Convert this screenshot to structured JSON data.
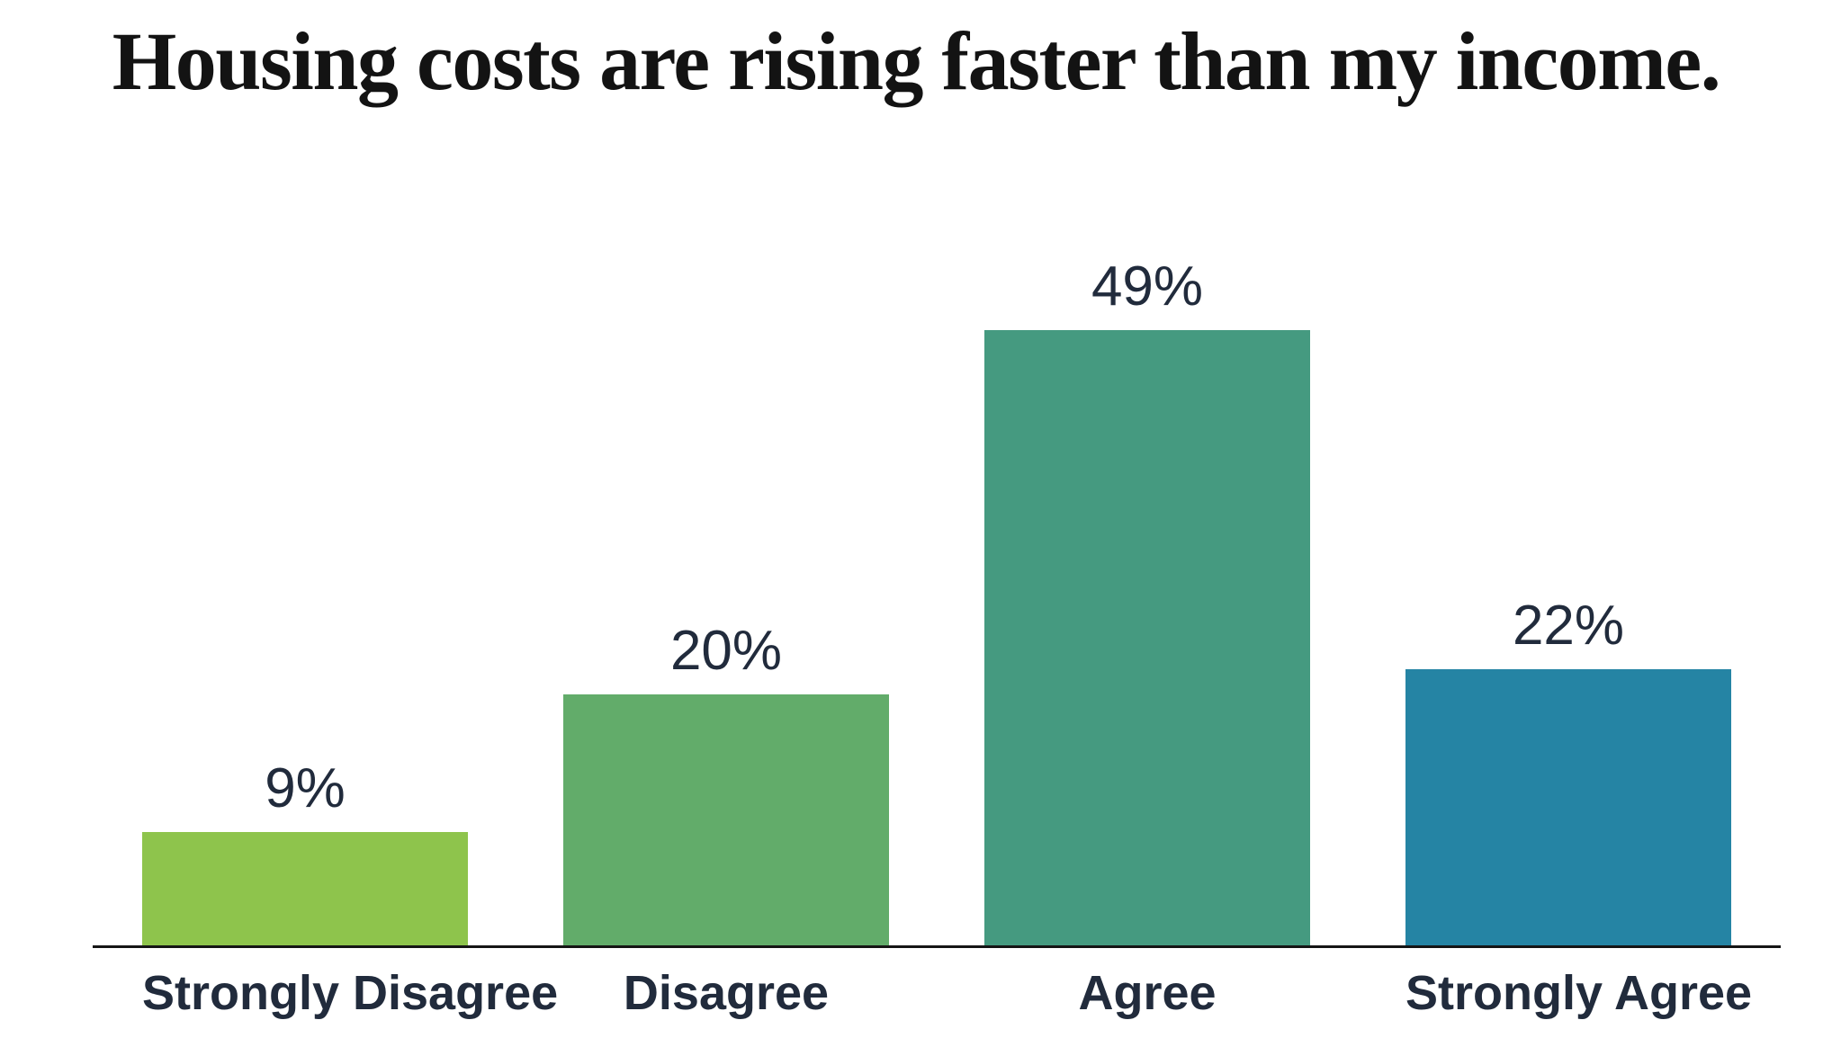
{
  "title": "Housing costs are rising faster than my income.",
  "chart_data": {
    "type": "bar",
    "title": "Housing costs are rising faster than my income.",
    "categories": [
      "Strongly Disagree",
      "Disagree",
      "Agree",
      "Strongly Agree"
    ],
    "values": [
      9,
      20,
      49,
      22
    ],
    "value_labels": [
      "9%",
      "20%",
      "49%",
      "22%"
    ],
    "unit": "%",
    "colors": [
      "#8EC44C",
      "#62AC6A",
      "#459A80",
      "#2584A4"
    ],
    "ylim": [
      0,
      55
    ],
    "xlabel": "",
    "ylabel": "",
    "grid": false,
    "legend_position": "none",
    "text_color": "#212B3C",
    "title_color": "#131313",
    "axis_color": "#151515"
  }
}
